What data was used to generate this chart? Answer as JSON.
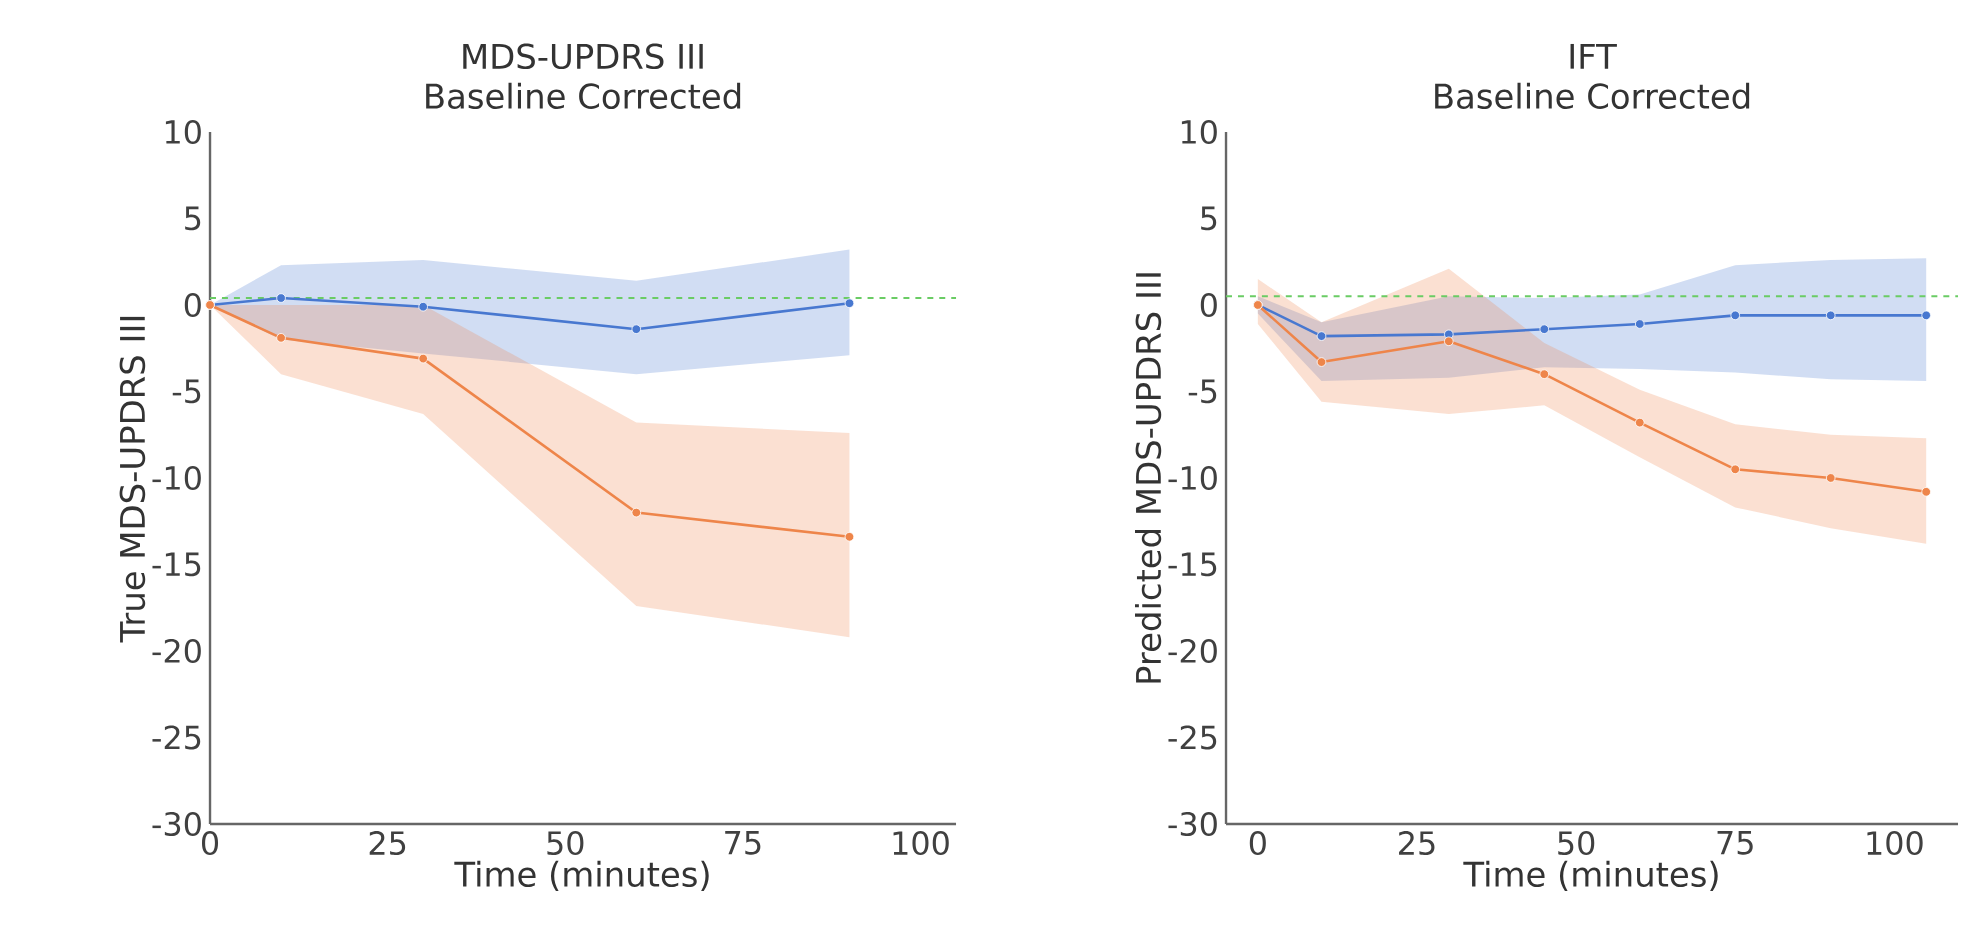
{
  "chart_data": [
    {
      "type": "line",
      "title": "MDS-UPDRS III",
      "subtitle": "Baseline Corrected",
      "xlabel": "Time (minutes)",
      "ylabel": "True MDS-UPDRS III",
      "xlim": [
        0,
        105
      ],
      "ylim": [
        -30,
        10
      ],
      "xticks": [
        0,
        25,
        50,
        75,
        100
      ],
      "yticks": [
        -30,
        -25,
        -20,
        -15,
        -10,
        -5,
        0,
        5,
        10
      ],
      "marker": "circle",
      "grid": false,
      "series": [
        {
          "color": "#4878d0",
          "x": [
            0,
            10,
            30,
            60,
            90
          ],
          "values": [
            0,
            0.4,
            -0.1,
            -1.4,
            0.1
          ],
          "lower": [
            0,
            -2.0,
            -2.8,
            -4.0,
            -2.9
          ],
          "upper": [
            0,
            2.3,
            2.6,
            1.4,
            3.2
          ]
        },
        {
          "color": "#ee854a",
          "x": [
            0,
            10,
            30,
            60,
            90
          ],
          "values": [
            0,
            -1.9,
            -3.1,
            -12.0,
            -13.4
          ],
          "lower": [
            0,
            -4.0,
            -6.3,
            -17.4,
            -19.2
          ],
          "upper": [
            0,
            0,
            0,
            -6.8,
            -7.4
          ]
        }
      ],
      "ref_lines": [
        {
          "axis": "y",
          "value": 0.4,
          "color": "#6acc64",
          "line_style": "dashed"
        }
      ]
    },
    {
      "type": "line",
      "title": "IFT",
      "subtitle": "Baseline Corrected",
      "xlabel": "Time (minutes)",
      "ylabel": "Predicted MDS-UPDRS III",
      "xlim": [
        -5,
        110
      ],
      "ylim": [
        -30,
        10
      ],
      "xticks": [
        0,
        25,
        50,
        75,
        100
      ],
      "yticks": [
        -30,
        -25,
        -20,
        -15,
        -10,
        -5,
        0,
        5,
        10
      ],
      "marker": "circle",
      "grid": false,
      "series": [
        {
          "color": "#4878d0",
          "x": [
            0,
            10,
            30,
            45,
            60,
            75,
            90,
            105
          ],
          "values": [
            0,
            -1.8,
            -1.7,
            -1.4,
            -1.1,
            -0.6,
            -0.6,
            -0.6
          ],
          "lower": [
            -0.5,
            -4.4,
            -4.2,
            -3.6,
            -3.7,
            -3.9,
            -4.3,
            -4.4
          ],
          "upper": [
            0.5,
            -1.0,
            0.5,
            0.4,
            0.6,
            2.3,
            2.6,
            2.7
          ]
        },
        {
          "color": "#ee854a",
          "x": [
            0,
            10,
            30,
            45,
            60,
            75,
            90,
            105
          ],
          "values": [
            0,
            -3.3,
            -2.1,
            -4.0,
            -6.8,
            -9.5,
            -10.0,
            -10.8
          ],
          "lower": [
            -1.1,
            -5.6,
            -6.3,
            -5.8,
            -8.8,
            -11.7,
            -12.9,
            -13.8
          ],
          "upper": [
            1.5,
            -1.0,
            2.1,
            -2.2,
            -4.9,
            -6.9,
            -7.5,
            -7.7
          ]
        }
      ],
      "ref_lines": [
        {
          "axis": "y",
          "value": 0.5,
          "color": "#6acc64",
          "line_style": "dashed"
        }
      ]
    }
  ]
}
